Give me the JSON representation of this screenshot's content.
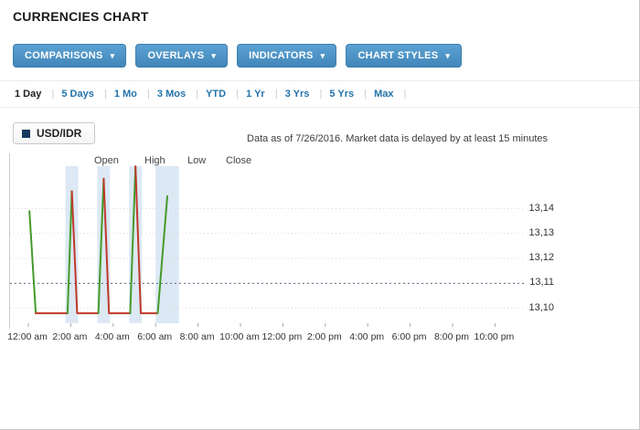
{
  "page": {
    "title": "CURRENCIES CHART"
  },
  "toolbar": {
    "caret": "▾",
    "buttons": [
      {
        "label": "COMPARISONS"
      },
      {
        "label": "OVERLAYS"
      },
      {
        "label": "INDICATORS"
      },
      {
        "label": "CHART STYLES"
      }
    ]
  },
  "ranges": [
    {
      "label": "1 Day",
      "active": true
    },
    {
      "label": "5 Days",
      "active": false
    },
    {
      "label": "1 Mo",
      "active": false
    },
    {
      "label": "3 Mos",
      "active": false
    },
    {
      "label": "YTD",
      "active": false
    },
    {
      "label": "1 Yr",
      "active": false
    },
    {
      "label": "3 Yrs",
      "active": false
    },
    {
      "label": "5 Yrs",
      "active": false
    },
    {
      "label": "Max",
      "active": false
    }
  ],
  "legend": {
    "series_label": "USD/IDR"
  },
  "status": {
    "text": "Data as of 7/26/2016. Market data is delayed by at least 15 minutes"
  },
  "ohlc": {
    "labels": [
      "Open",
      "High",
      "Low",
      "Close"
    ]
  },
  "chart_data": {
    "type": "line",
    "series_name": "USD/IDR",
    "x_unit": "hour",
    "x_range": [
      0,
      24
    ],
    "y_range": [
      13.094,
      13.16
    ],
    "y_ticks": [
      {
        "label": "13,14",
        "value": 13.14
      },
      {
        "label": "13,13",
        "value": 13.13
      },
      {
        "label": "13,12",
        "value": 13.12
      },
      {
        "label": "13,11",
        "value": 13.11
      },
      {
        "label": "13,10",
        "value": 13.1
      }
    ],
    "x_ticks": [
      {
        "label": "12:00 am",
        "hour": 0
      },
      {
        "label": "2:00 am",
        "hour": 2
      },
      {
        "label": "4:00 am",
        "hour": 4
      },
      {
        "label": "6:00 am",
        "hour": 6
      },
      {
        "label": "8:00 am",
        "hour": 8
      },
      {
        "label": "10:00 am",
        "hour": 10
      },
      {
        "label": "12:00 pm",
        "hour": 12
      },
      {
        "label": "2:00 pm",
        "hour": 14
      },
      {
        "label": "4:00 pm",
        "hour": 16
      },
      {
        "label": "6:00 pm",
        "hour": 18
      },
      {
        "label": "8:00 pm",
        "hour": 20
      },
      {
        "label": "10:00 pm",
        "hour": 22
      }
    ],
    "reference_line": {
      "value": 13.11,
      "style": "dotted"
    },
    "highlight_bands": [
      {
        "x0": 1.75,
        "x1": 2.35
      },
      {
        "x0": 3.25,
        "x1": 3.85
      },
      {
        "x0": 4.75,
        "x1": 5.35
      },
      {
        "x0": 6.0,
        "x1": 7.1
      }
    ],
    "colors": {
      "up": "#459a2b",
      "down": "#c0392b",
      "band": "#dce8f4",
      "grid": "#d9d9d9",
      "reference": "#666688"
    },
    "segments": [
      {
        "direction": "down-open",
        "color": "#459a2b",
        "points": [
          [
            0.05,
            13.139
          ],
          [
            0.35,
            13.098
          ]
        ]
      },
      {
        "direction": "flat",
        "color": "#c0392b",
        "points": [
          [
            0.35,
            13.098
          ],
          [
            1.85,
            13.098
          ]
        ]
      },
      {
        "direction": "up",
        "color": "#459a2b",
        "points": [
          [
            1.85,
            13.098
          ],
          [
            2.05,
            13.147
          ]
        ]
      },
      {
        "direction": "down",
        "color": "#c0392b",
        "points": [
          [
            2.05,
            13.147
          ],
          [
            2.3,
            13.098
          ],
          [
            3.3,
            13.098
          ]
        ]
      },
      {
        "direction": "up",
        "color": "#459a2b",
        "points": [
          [
            3.3,
            13.098
          ],
          [
            3.55,
            13.152
          ]
        ]
      },
      {
        "direction": "down",
        "color": "#c0392b",
        "points": [
          [
            3.55,
            13.152
          ],
          [
            3.8,
            13.098
          ],
          [
            4.8,
            13.098
          ]
        ]
      },
      {
        "direction": "up",
        "color": "#459a2b",
        "points": [
          [
            4.8,
            13.098
          ],
          [
            5.05,
            13.157
          ]
        ]
      },
      {
        "direction": "down",
        "color": "#c0392b",
        "points": [
          [
            5.05,
            13.157
          ],
          [
            5.3,
            13.098
          ],
          [
            6.1,
            13.098
          ]
        ]
      },
      {
        "direction": "up",
        "color": "#459a2b",
        "points": [
          [
            6.1,
            13.098
          ],
          [
            6.55,
            13.145
          ]
        ]
      }
    ]
  }
}
